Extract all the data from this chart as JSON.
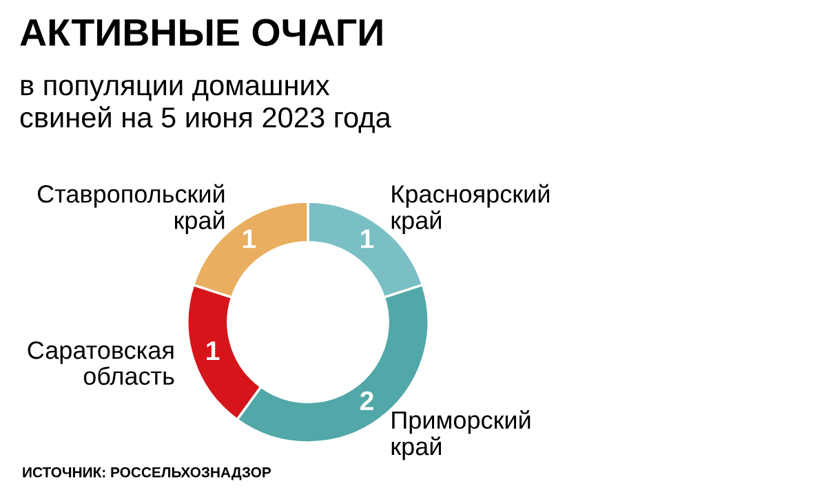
{
  "chart_data": {
    "type": "donut",
    "title": "АКТИВНЫЕ ОЧАГИ",
    "subtitle": "в популяции домашних\nсвиней на 5 июня 2023 года",
    "categories": [
      "Красноярский\nкрай",
      "Приморский\nкрай",
      "Саратовская\nобласть",
      "Ставропольский\nкрай"
    ],
    "values": [
      1,
      2,
      1,
      1
    ],
    "colors": [
      "#79bfc4",
      "#52a7a8",
      "#d51519",
      "#e9ae5f"
    ],
    "data_labels": true,
    "annotations": [
      "ИСТОЧНИК: РОССЕЛЬХОЗНАДЗОР"
    ]
  }
}
